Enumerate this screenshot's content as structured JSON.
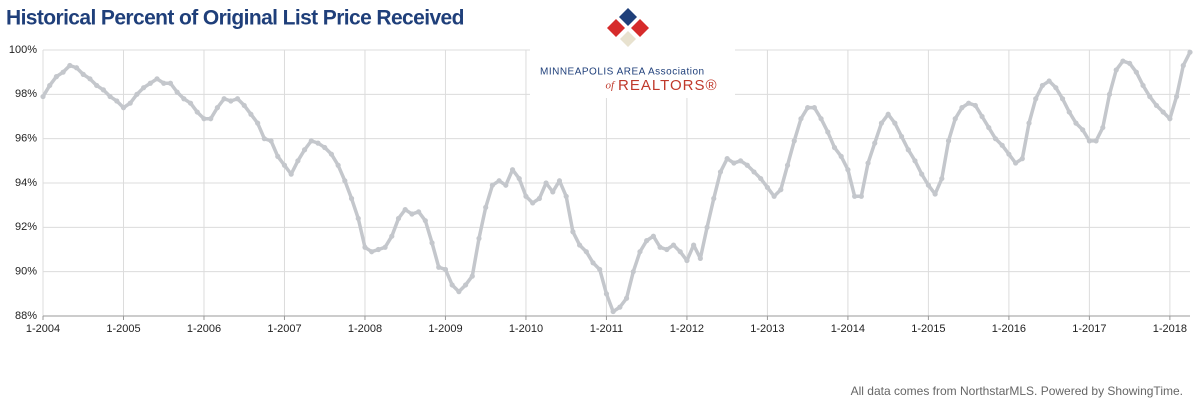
{
  "chart_data": {
    "type": "line",
    "title": "Historical Percent of Original List Price Received",
    "logo": {
      "line1": "MINNEAPOLIS AREA Association",
      "of": "of",
      "realtors": "REALTORS®"
    },
    "footer": "All data comes from NorthstarMLS. Powered by ShowingTime.",
    "color": "#c4c7cc",
    "grid": true,
    "categories": [
      "1-2004",
      null,
      null,
      null,
      null,
      null,
      null,
      null,
      null,
      null,
      null,
      null,
      "1-2005",
      null,
      null,
      null,
      null,
      null,
      null,
      null,
      null,
      null,
      null,
      null,
      "1-2006",
      null,
      null,
      null,
      null,
      null,
      null,
      null,
      null,
      null,
      null,
      null,
      "1-2007",
      null,
      null,
      null,
      null,
      null,
      null,
      null,
      null,
      null,
      null,
      null,
      "1-2008",
      null,
      null,
      null,
      null,
      null,
      null,
      null,
      null,
      null,
      null,
      null,
      "1-2009",
      null,
      null,
      null,
      null,
      null,
      null,
      null,
      null,
      null,
      null,
      null,
      "1-2010",
      null,
      null,
      null,
      null,
      null,
      null,
      null,
      null,
      null,
      null,
      null,
      "1-2011",
      null,
      null,
      null,
      null,
      null,
      null,
      null,
      null,
      null,
      null,
      null,
      "1-2012",
      null,
      null,
      null,
      null,
      null,
      null,
      null,
      null,
      null,
      null,
      null,
      "1-2013",
      null,
      null,
      null,
      null,
      null,
      null,
      null,
      null,
      null,
      null,
      null,
      "1-2014",
      null,
      null,
      null,
      null,
      null,
      null,
      null,
      null,
      null,
      null,
      null,
      "1-2015",
      null,
      null,
      null,
      null,
      null,
      null,
      null,
      null,
      null,
      null,
      null,
      "1-2016",
      null,
      null,
      null,
      null,
      null,
      null,
      null,
      null,
      null,
      null,
      null,
      "1-2017",
      null,
      null,
      null,
      null,
      null,
      null,
      null,
      null,
      null,
      null,
      null,
      "1-2018",
      null,
      null,
      null
    ],
    "values": [
      97.9,
      98.4,
      98.8,
      99.0,
      99.3,
      99.2,
      98.9,
      98.7,
      98.4,
      98.2,
      97.9,
      97.7,
      97.4,
      97.6,
      98.0,
      98.3,
      98.5,
      98.7,
      98.5,
      98.5,
      98.1,
      97.8,
      97.6,
      97.2,
      96.9,
      96.9,
      97.4,
      97.8,
      97.7,
      97.8,
      97.5,
      97.1,
      96.7,
      96.0,
      95.9,
      95.2,
      94.8,
      94.4,
      95.0,
      95.5,
      95.9,
      95.8,
      95.6,
      95.3,
      94.8,
      94.1,
      93.3,
      92.4,
      91.1,
      90.9,
      91.0,
      91.1,
      91.6,
      92.4,
      92.8,
      92.6,
      92.7,
      92.3,
      91.3,
      90.2,
      90.1,
      89.4,
      89.1,
      89.4,
      89.8,
      91.5,
      92.9,
      93.9,
      94.1,
      93.9,
      94.6,
      94.2,
      93.4,
      93.1,
      93.3,
      94.0,
      93.6,
      94.1,
      93.4,
      91.8,
      91.2,
      90.9,
      90.4,
      90.1,
      89.0,
      88.2,
      88.4,
      88.8,
      90.0,
      90.9,
      91.4,
      91.6,
      91.1,
      91.0,
      91.2,
      90.9,
      90.5,
      91.2,
      90.6,
      92.0,
      93.3,
      94.5,
      95.1,
      94.9,
      95.0,
      94.8,
      94.5,
      94.2,
      93.8,
      93.4,
      93.7,
      94.8,
      95.9,
      96.9,
      97.4,
      97.4,
      96.9,
      96.3,
      95.6,
      95.2,
      94.6,
      93.4,
      93.4,
      94.9,
      95.8,
      96.7,
      97.1,
      96.7,
      96.1,
      95.5,
      95.0,
      94.4,
      93.9,
      93.5,
      94.2,
      95.9,
      96.9,
      97.4,
      97.6,
      97.5,
      97.0,
      96.5,
      96.0,
      95.7,
      95.3,
      94.9,
      95.1,
      96.7,
      97.8,
      98.4,
      98.6,
      98.3,
      97.8,
      97.2,
      96.7,
      96.4,
      95.9,
      95.9,
      96.5,
      98.0,
      99.1,
      99.5,
      99.4,
      99.0,
      98.4,
      97.9,
      97.5,
      97.2,
      96.9,
      97.9,
      99.3,
      99.9
    ],
    "ylim": [
      88,
      100
    ],
    "yticks": [
      {
        "value": 88,
        "label": "88%"
      },
      {
        "value": 90,
        "label": "90%"
      },
      {
        "value": 92,
        "label": "92%"
      },
      {
        "value": 94,
        "label": "94%"
      },
      {
        "value": 96,
        "label": "96%"
      },
      {
        "value": 98,
        "label": "98%"
      },
      {
        "value": 100,
        "label": "100%"
      }
    ]
  }
}
